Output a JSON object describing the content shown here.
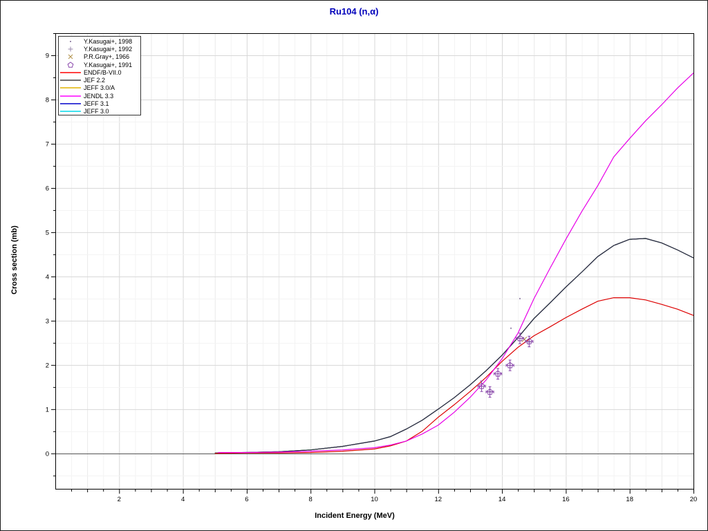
{
  "window": {
    "title": "Ru104 (n,α)"
  },
  "chart_data": {
    "type": "line",
    "title": "Ru104 (n,α)",
    "xlabel": "Incident Energy (MeV)",
    "ylabel": "Cross section (mb)",
    "xlim": [
      0,
      20
    ],
    "ylim": [
      -0.8,
      9.5
    ],
    "x_major_ticks": [
      2,
      4,
      6,
      8,
      10,
      12,
      14,
      16,
      18,
      20
    ],
    "y_major_ticks": [
      0,
      1,
      2,
      3,
      4,
      5,
      6,
      7,
      8,
      9
    ],
    "minor_tick_step": 0.5,
    "grid": "major+minor",
    "zero_line": true,
    "legend_position": "top-left",
    "shared_curve_points": {
      "jeff_family": [
        [
          5,
          0.01
        ],
        [
          6,
          0.02
        ],
        [
          7,
          0.04
        ],
        [
          8,
          0.08
        ],
        [
          9,
          0.16
        ],
        [
          10,
          0.28
        ],
        [
          10.5,
          0.38
        ],
        [
          11,
          0.55
        ],
        [
          11.5,
          0.75
        ],
        [
          12,
          1.0
        ],
        [
          12.5,
          1.26
        ],
        [
          13,
          1.55
        ],
        [
          13.5,
          1.87
        ],
        [
          14,
          2.22
        ],
        [
          14.5,
          2.62
        ],
        [
          15,
          3.05
        ],
        [
          15.5,
          3.4
        ],
        [
          16,
          3.76
        ],
        [
          16.5,
          4.1
        ],
        [
          17,
          4.45
        ],
        [
          17.5,
          4.7
        ],
        [
          18,
          4.84
        ],
        [
          18.5,
          4.86
        ],
        [
          19,
          4.76
        ],
        [
          19.5,
          4.6
        ],
        [
          20,
          4.42
        ]
      ]
    },
    "curves": [
      {
        "name": "JEFF 3.0",
        "color": "#00d8e8",
        "points_ref": "jeff_family",
        "coincident_with": "JEFF 3.1"
      },
      {
        "name": "JEFF 3.0/A",
        "color": "#e0b400",
        "points_ref": "jeff_family",
        "coincident_with": "JEFF 3.1"
      },
      {
        "name": "JEF 2.2",
        "color": "#404040",
        "points_ref": "jeff_family",
        "coincident_with": "JEFF 3.1"
      },
      {
        "name": "JEFF 3.1",
        "color": "#2e2e4e",
        "points_ref": "jeff_family"
      },
      {
        "name": "ENDF/B-VII.0",
        "color": "#dd0000",
        "points": [
          [
            5,
            0.0
          ],
          [
            6,
            0.01
          ],
          [
            7,
            0.01
          ],
          [
            8,
            0.02
          ],
          [
            9,
            0.05
          ],
          [
            10,
            0.1
          ],
          [
            10.5,
            0.17
          ],
          [
            11,
            0.28
          ],
          [
            11.5,
            0.5
          ],
          [
            12,
            0.82
          ],
          [
            12.5,
            1.1
          ],
          [
            13,
            1.4
          ],
          [
            13.5,
            1.72
          ],
          [
            14,
            2.08
          ],
          [
            14.5,
            2.4
          ],
          [
            15,
            2.66
          ],
          [
            15.5,
            2.86
          ],
          [
            16,
            3.07
          ],
          [
            16.5,
            3.26
          ],
          [
            17,
            3.44
          ],
          [
            17.5,
            3.52
          ],
          [
            18,
            3.52
          ],
          [
            18.5,
            3.47
          ],
          [
            19,
            3.37
          ],
          [
            19.5,
            3.26
          ],
          [
            20,
            3.12
          ]
        ]
      },
      {
        "name": "JENDL 3.3",
        "color": "#e800e8",
        "points": [
          [
            5.1,
            0.02
          ],
          [
            6,
            0.02
          ],
          [
            7,
            0.03
          ],
          [
            8,
            0.05
          ],
          [
            9,
            0.08
          ],
          [
            10,
            0.13
          ],
          [
            10.5,
            0.19
          ],
          [
            11,
            0.28
          ],
          [
            11.5,
            0.44
          ],
          [
            12,
            0.64
          ],
          [
            12.5,
            0.93
          ],
          [
            13,
            1.27
          ],
          [
            13.5,
            1.66
          ],
          [
            14,
            2.14
          ],
          [
            14.5,
            2.72
          ],
          [
            15,
            3.5
          ],
          [
            15.5,
            4.18
          ],
          [
            16,
            4.84
          ],
          [
            16.5,
            5.47
          ],
          [
            17,
            6.05
          ],
          [
            17.5,
            6.7
          ],
          [
            18,
            7.12
          ],
          [
            18.5,
            7.52
          ],
          [
            19,
            7.88
          ],
          [
            19.5,
            8.26
          ],
          [
            20,
            8.6
          ]
        ]
      }
    ],
    "experiments": [
      {
        "name": "Y.Kasugai+, 1998",
        "marker": "dot",
        "color": "#9a8aac",
        "points": [
          [
            14.28,
            2.83
          ],
          [
            14.56,
            3.5
          ]
        ]
      },
      {
        "name": "Y.Kasugai+, 1992",
        "marker": "plus",
        "color": "#9a8aac",
        "points": [
          [
            13.62,
            1.4
          ],
          [
            14.25,
            1.99
          ],
          [
            14.85,
            2.52
          ]
        ]
      },
      {
        "name": "P.R.Gray+, 1966",
        "marker": "x",
        "color": "#b09048",
        "points": [
          [
            14.7,
            2.58
          ]
        ]
      },
      {
        "name": "Y.Kasugai+, 1991",
        "marker": "pentagon",
        "color": "#8844aa",
        "xerr": 0.12,
        "yerr": 0.12,
        "points": [
          [
            13.36,
            1.52
          ],
          [
            13.62,
            1.39
          ],
          [
            13.87,
            1.8
          ],
          [
            14.25,
            1.99
          ],
          [
            14.56,
            2.6
          ],
          [
            14.85,
            2.53
          ]
        ]
      }
    ],
    "legend": [
      {
        "swatch": "dot",
        "color": "#9a8aac",
        "label": "Y.Kasugai+, 1998"
      },
      {
        "swatch": "plus",
        "color": "#9a8aac",
        "label": "Y.Kasugai+, 1992"
      },
      {
        "swatch": "x",
        "color": "#b09048",
        "label": "P.R.Gray+, 1966"
      },
      {
        "swatch": "pentagon",
        "color": "#8844aa",
        "label": "Y.Kasugai+, 1991"
      },
      {
        "swatch": "line",
        "color": "#ff0000",
        "label": "ENDF/B-VII.0"
      },
      {
        "swatch": "line",
        "color": "#404040",
        "label": "JEF 2.2"
      },
      {
        "swatch": "line",
        "color": "#e0b400",
        "label": "JEFF 3.0/A"
      },
      {
        "swatch": "line",
        "color": "#ff00ff",
        "label": "JENDL 3.3"
      },
      {
        "swatch": "line",
        "color": "#0000cc",
        "label": "JEFF 3.1"
      },
      {
        "swatch": "line",
        "color": "#00d8e8",
        "label": "JEFF 3.0"
      }
    ]
  },
  "colors": {
    "background": "#ffffff",
    "frame": "#000000",
    "title": "#0000bb",
    "grid_major": "#d7d7d7",
    "grid_mid": "#e9e9e9",
    "grid_minor": "#f3f3f3",
    "zero_line": "#4d4d4d",
    "tick": "#000000",
    "tick_label": "#000000"
  }
}
